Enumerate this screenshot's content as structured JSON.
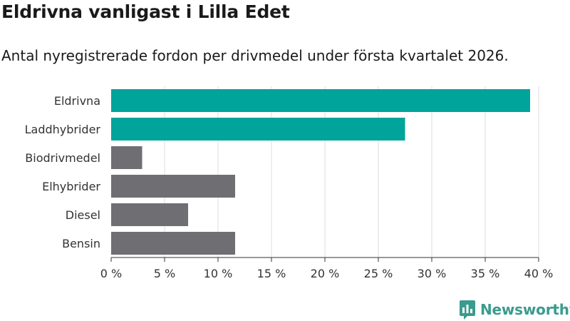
{
  "header": {
    "title": "Eldrivna vanligast i Lilla Edet",
    "subtitle": "Antal nyregistrerade fordon per drivmedel under första kvartalet 2026."
  },
  "chart_data": {
    "type": "bar",
    "orientation": "horizontal",
    "categories": [
      "Eldrivna",
      "Laddhybrider",
      "Biodrivmedel",
      "Elhybrider",
      "Diesel",
      "Bensin"
    ],
    "values": [
      39.2,
      27.5,
      2.9,
      11.6,
      7.2,
      11.6
    ],
    "highlight": [
      true,
      true,
      false,
      false,
      false,
      false
    ],
    "xlim": [
      0,
      40
    ],
    "xticks": [
      0,
      5,
      10,
      15,
      20,
      25,
      30,
      35,
      40
    ],
    "xtick_labels": [
      "0 %",
      "5 %",
      "10 %",
      "15 %",
      "20 %",
      "25 %",
      "30 %",
      "35 %",
      "40 %"
    ],
    "xlabel": "",
    "ylabel": "",
    "grid": true,
    "colors": {
      "highlight": "#00a49a",
      "default": "#6f6e73",
      "grid": "#dddddd",
      "axis": "#333333",
      "text": "#333333"
    }
  },
  "branding": {
    "name": "Newsworthy",
    "icon": "newsworthy-logo-icon",
    "color": "#3a9b8e"
  }
}
